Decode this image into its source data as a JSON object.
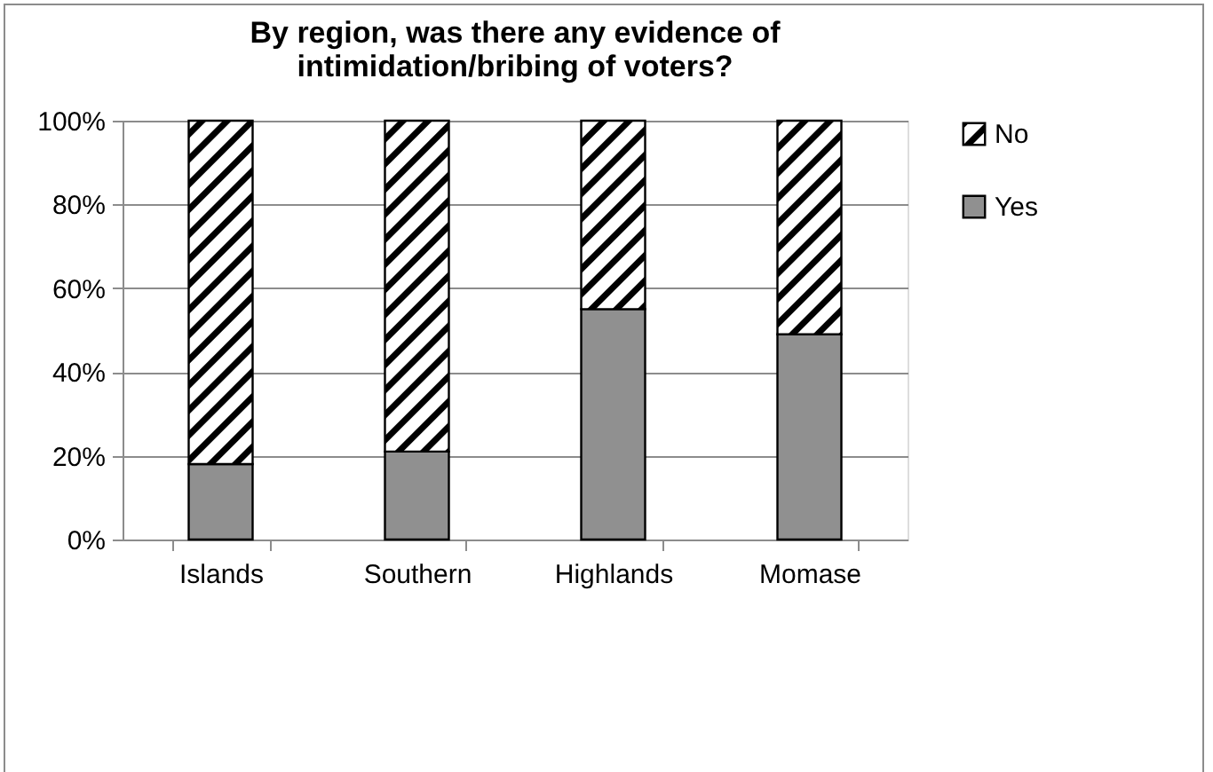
{
  "chart_data": {
    "type": "bar",
    "title": "By region, was there any evidence of intimidation/bribing of voters?",
    "categories": [
      "Islands",
      "Southern",
      "Highlands",
      "Momase"
    ],
    "series": [
      {
        "name": "Yes",
        "color": "#909090",
        "values": [
          18,
          21,
          55,
          49
        ]
      },
      {
        "name": "No",
        "color": "#000000",
        "values": [
          82,
          79,
          45,
          51
        ]
      }
    ],
    "stacked": true,
    "ylim": [
      0,
      100
    ],
    "yticks": [
      {
        "value": 0,
        "label": "0%"
      },
      {
        "value": 20,
        "label": "20%"
      },
      {
        "value": 40,
        "label": "40%"
      },
      {
        "value": 60,
        "label": "60%"
      },
      {
        "value": 80,
        "label": "80%"
      },
      {
        "value": 100,
        "label": "100%"
      }
    ],
    "grid": "y",
    "legend": "right"
  }
}
